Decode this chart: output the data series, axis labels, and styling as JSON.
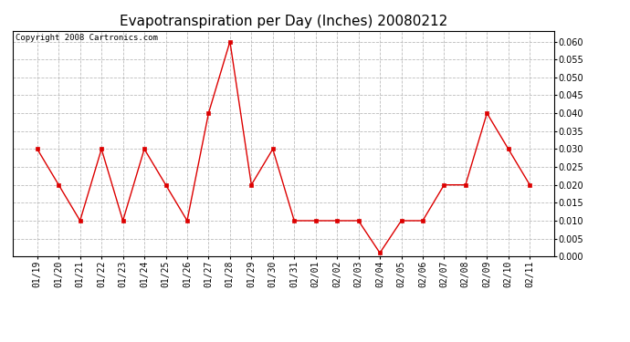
{
  "title": "Evapotranspiration per Day (Inches) 20080212",
  "copyright_text": "Copyright 2008 Cartronics.com",
  "x_labels": [
    "01/19",
    "01/20",
    "01/21",
    "01/22",
    "01/23",
    "01/24",
    "01/25",
    "01/26",
    "01/27",
    "01/28",
    "01/29",
    "01/30",
    "01/31",
    "02/01",
    "02/02",
    "02/03",
    "02/04",
    "02/05",
    "02/06",
    "02/07",
    "02/08",
    "02/09",
    "02/10",
    "02/11"
  ],
  "y_values": [
    0.03,
    0.02,
    0.01,
    0.03,
    0.01,
    0.03,
    0.02,
    0.01,
    0.04,
    0.06,
    0.02,
    0.03,
    0.01,
    0.01,
    0.01,
    0.01,
    0.001,
    0.01,
    0.01,
    0.02,
    0.02,
    0.04,
    0.03,
    0.02
  ],
  "line_color": "#dd0000",
  "marker": "s",
  "marker_size": 2.5,
  "ylim": [
    0.0,
    0.063
  ],
  "yticks": [
    0.0,
    0.005,
    0.01,
    0.015,
    0.02,
    0.025,
    0.03,
    0.035,
    0.04,
    0.045,
    0.05,
    0.055,
    0.06
  ],
  "grid_color": "#bbbbbb",
  "bg_color": "#ffffff",
  "title_fontsize": 11,
  "copyright_fontsize": 6.5,
  "tick_fontsize": 7,
  "fig_width": 6.9,
  "fig_height": 3.75,
  "dpi": 100
}
